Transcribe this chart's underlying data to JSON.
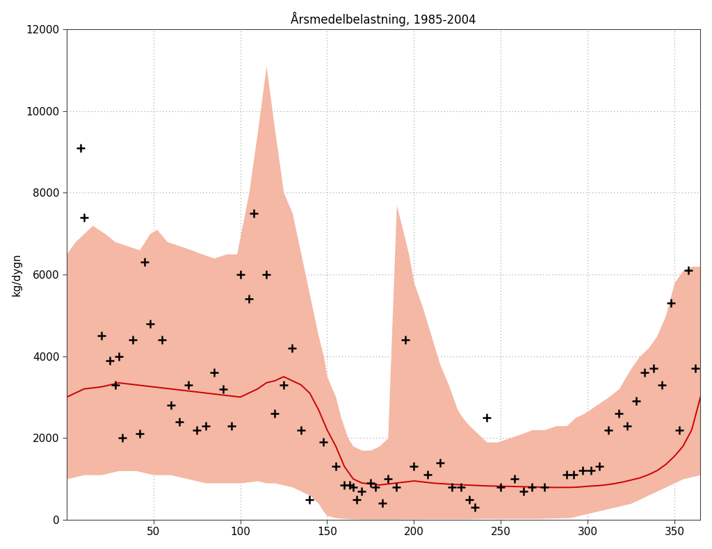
{
  "title": "Årsmedelbelastning, 1985-2004",
  "ylabel": "kg/dygn",
  "xlim": [
    0,
    365
  ],
  "ylim": [
    0,
    12000
  ],
  "xticks": [
    50,
    100,
    150,
    200,
    250,
    300,
    350
  ],
  "yticks": [
    0,
    2000,
    4000,
    6000,
    8000,
    10000,
    12000
  ],
  "fill_color": "#F4B8A5",
  "fill_alpha": 1.0,
  "line_color": "#CC0000",
  "line_width": 1.4,
  "marker_color": "black",
  "marker_size": 7,
  "background_color": "#ffffff",
  "title_fontsize": 12,
  "label_fontsize": 11,
  "tick_fontsize": 11,
  "grid_color": "#999999",
  "grid_alpha": 1.0,
  "scatter_x": [
    8,
    10,
    20,
    25,
    28,
    30,
    32,
    38,
    42,
    45,
    48,
    55,
    60,
    65,
    70,
    75,
    80,
    85,
    90,
    95,
    100,
    105,
    108,
    115,
    120,
    125,
    130,
    135,
    140,
    148,
    155,
    160,
    163,
    165,
    167,
    170,
    175,
    178,
    182,
    185,
    190,
    195,
    200,
    208,
    215,
    222,
    227,
    232,
    235,
    242,
    250,
    258,
    263,
    268,
    275,
    288,
    292,
    297,
    302,
    307,
    312,
    318,
    323,
    328,
    333,
    338,
    343,
    348,
    353,
    358,
    362
  ],
  "scatter_y": [
    9100,
    7400,
    4500,
    3900,
    3300,
    4000,
    2000,
    4400,
    2100,
    6300,
    4800,
    4400,
    2800,
    2400,
    3300,
    2200,
    2300,
    3600,
    3200,
    2300,
    6000,
    5400,
    7500,
    6000,
    2600,
    3300,
    4200,
    2200,
    500,
    1900,
    1300,
    850,
    850,
    800,
    500,
    700,
    900,
    800,
    400,
    1000,
    800,
    4400,
    1300,
    1100,
    1400,
    800,
    800,
    500,
    300,
    2500,
    800,
    1000,
    700,
    800,
    800,
    1100,
    1100,
    1200,
    1200,
    1300,
    2200,
    2600,
    2300,
    2900,
    3600,
    3700,
    3300,
    5300,
    2200,
    6100,
    3700
  ]
}
